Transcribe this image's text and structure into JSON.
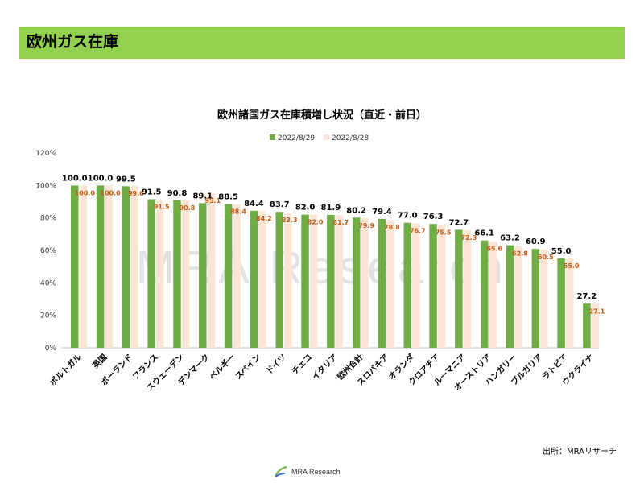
{
  "header": {
    "title": "欧州ガス在庫"
  },
  "source": "出所：MRAリサーチ",
  "logo": {
    "text": "MRA Research"
  },
  "watermark": "MRA Research",
  "colors": {
    "series1": "#70ad47",
    "series2": "#fbe5d6",
    "label2": "#c55a11",
    "header": "#92d050"
  },
  "chart_data": {
    "type": "bar",
    "title": "欧州諸国ガス在庫積増し状況（直近・前日）",
    "categories": [
      "ポルトガル",
      "英国",
      "ポーランド",
      "フランス",
      "スウェーデン",
      "デンマーク",
      "ベルギー",
      "スペイン",
      "ドイツ",
      "チェコ",
      "イタリア",
      "欧州合計",
      "スロバキア",
      "オランダ",
      "クロアチア",
      "ルーマニア",
      "オーストリア",
      "ハンガリー",
      "ブルガリア",
      "ラトビア",
      "ウクライナ"
    ],
    "series": [
      {
        "name": "2022/8/29",
        "values": [
          100.0,
          100.0,
          99.5,
          91.5,
          90.8,
          89.1,
          88.5,
          84.4,
          83.7,
          82.0,
          81.9,
          80.2,
          79.4,
          77.0,
          76.3,
          72.7,
          66.1,
          63.2,
          60.9,
          55.0,
          27.2
        ]
      },
      {
        "name": "2022/8/28",
        "values": [
          100.0,
          100.0,
          99.6,
          91.5,
          90.8,
          95.1,
          88.4,
          84.2,
          83.3,
          82.0,
          81.7,
          79.9,
          78.8,
          76.7,
          75.5,
          72.3,
          65.6,
          62.8,
          60.5,
          55.0,
          27.1
        ]
      }
    ],
    "yticks": [
      "0%",
      "20%",
      "40%",
      "60%",
      "80%",
      "100%",
      "120%"
    ],
    "ylim": [
      0,
      120
    ],
    "legend": "top-center",
    "grid": false
  }
}
